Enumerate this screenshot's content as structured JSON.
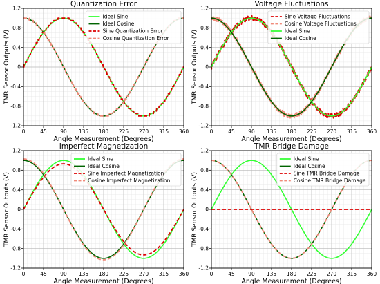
{
  "figure": {
    "panels_layout": "2x2"
  },
  "chart_data": [
    {
      "type": "line",
      "title": "Quantization Error",
      "xlabel": "Angle Measurement (Degrees)",
      "ylabel": "TMR Sensor Outputs (V)",
      "xlim": [
        0,
        360
      ],
      "ylim": [
        -1.2,
        1.2
      ],
      "xticks": [
        "0",
        "45",
        "90",
        "135",
        "180",
        "225",
        "270",
        "315",
        "360"
      ],
      "yticks": [
        "-1.2",
        "-0.8",
        "-0.4",
        "0",
        "0.4",
        "0.8",
        "1.2"
      ],
      "grid": true,
      "legend_position": "top-right",
      "x_step_deg": 15,
      "series": [
        {
          "name": "Ideal Sine",
          "func": "sin",
          "amplitude": 1.0,
          "color": "#33ff33",
          "style": "solid"
        },
        {
          "name": "Ideal Cosine",
          "func": "cos",
          "amplitude": 1.0,
          "color": "#006400",
          "style": "solid"
        },
        {
          "name": "Sine Quantization Error",
          "func": "sin",
          "amplitude": 1.0,
          "quantization_step": 0.05,
          "color": "#dd0000",
          "style": "dashed"
        },
        {
          "name": "Cosine Quantization Error",
          "func": "cos",
          "amplitude": 1.0,
          "quantization_step": 0.05,
          "color": "#f08a7a",
          "style": "dashed"
        }
      ]
    },
    {
      "type": "line",
      "title": "Voltage Fluctuations",
      "xlabel": "Angle Measurement (Degrees)",
      "ylabel": "TMR Sensor Outputs (V)",
      "xlim": [
        0,
        360
      ],
      "ylim": [
        -1.2,
        1.2
      ],
      "xticks": [
        "0",
        "45",
        "90",
        "135",
        "180",
        "225",
        "270",
        "315",
        "360"
      ],
      "yticks": [
        "-1.2",
        "-0.8",
        "-0.4",
        "0",
        "0.4",
        "0.8",
        "1.2"
      ],
      "grid": true,
      "legend_position": "top-right",
      "x_step_deg": 15,
      "series": [
        {
          "name": "Sine Voltage Fluctuations",
          "func": "sin",
          "amplitude": 1.0,
          "noise": 0.05,
          "color": "#dd0000",
          "style": "dashed"
        },
        {
          "name": "Cosine Voltage Fluctuations",
          "func": "cos",
          "amplitude": 1.0,
          "noise": 0.05,
          "color": "#f08a7a",
          "style": "dashed"
        },
        {
          "name": "Ideal Sine",
          "func": "sin",
          "amplitude": 1.0,
          "color": "#33ff33",
          "style": "solid"
        },
        {
          "name": "Ideal Cosine",
          "func": "cos",
          "amplitude": 1.0,
          "color": "#006400",
          "style": "solid"
        }
      ]
    },
    {
      "type": "line",
      "title": "Imperfect Magnetization",
      "xlabel": "Angle Measurement (Degrees)",
      "ylabel": "TMR Sensor Outputs (V)",
      "xlim": [
        0,
        360
      ],
      "ylim": [
        -1.2,
        1.2
      ],
      "xticks": [
        "0",
        "45",
        "90",
        "135",
        "180",
        "225",
        "270",
        "315",
        "360"
      ],
      "yticks": [
        "-1.2",
        "-0.8",
        "-0.4",
        "0",
        "0.4",
        "0.8",
        "1.2"
      ],
      "grid": true,
      "legend_position": "top-right",
      "x_step_deg": 15,
      "series": [
        {
          "name": "Ideal Sine",
          "func": "sin",
          "amplitude": 1.0,
          "color": "#33ff33",
          "style": "solid"
        },
        {
          "name": "Ideal Cosine",
          "func": "cos",
          "amplitude": 1.0,
          "color": "#006400",
          "style": "solid"
        },
        {
          "name": "Sine Imperfect Magnetization",
          "func": "sin",
          "amplitude": 0.93,
          "color": "#dd0000",
          "style": "dashed"
        },
        {
          "name": "Cosine Imperfect Magnetization",
          "func": "cos",
          "amplitude": 1.03,
          "color": "#f08a7a",
          "style": "dashed"
        }
      ]
    },
    {
      "type": "line",
      "title": "TMR Bridge Damage",
      "xlabel": "Angle Measurement (Degrees)",
      "ylabel": "TMR Sensor Outputs (V)",
      "xlim": [
        0,
        360
      ],
      "ylim": [
        -1.2,
        1.2
      ],
      "xticks": [
        "0",
        "45",
        "90",
        "135",
        "180",
        "225",
        "270",
        "315",
        "360"
      ],
      "yticks": [
        "-1.2",
        "-0.8",
        "-0.4",
        "0",
        "0.4",
        "0.8",
        "1.2"
      ],
      "grid": true,
      "legend_position": "top-right",
      "x_step_deg": 15,
      "series": [
        {
          "name": "Ideal Sine",
          "func": "sin",
          "amplitude": 1.0,
          "color": "#33ff33",
          "style": "solid"
        },
        {
          "name": "Ideal Cosine",
          "func": "cos",
          "amplitude": 1.0,
          "color": "#006400",
          "style": "solid"
        },
        {
          "name": "Sine TMR Bridge Damage",
          "func": "zero",
          "amplitude": 0.0,
          "color": "#dd0000",
          "style": "dashed"
        },
        {
          "name": "Cosine TMR Bridge Damage",
          "func": "cos",
          "amplitude": 1.0,
          "color": "#f08a7a",
          "style": "dashed"
        }
      ]
    }
  ]
}
